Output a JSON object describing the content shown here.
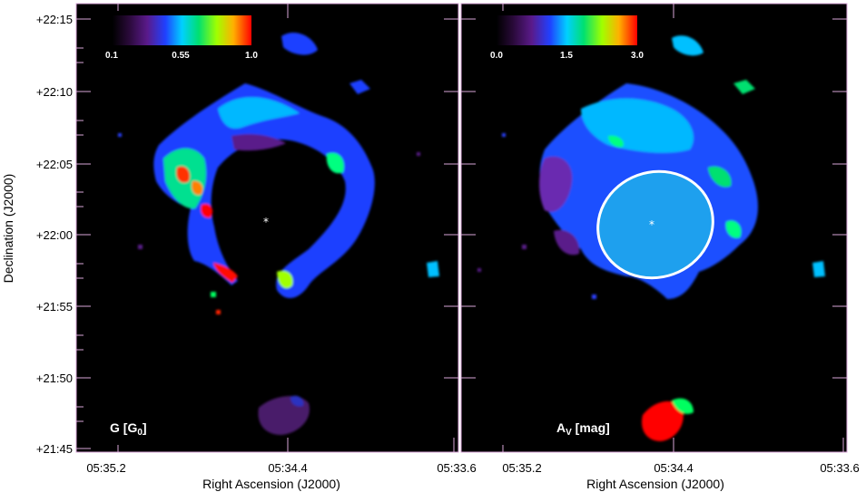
{
  "axes": {
    "y_title": "Declination (J2000)",
    "x_title": "Right Ascension (J2000)",
    "y_ticks": [
      "+22:15",
      "+22:10",
      "+22:05",
      "+22:00",
      "+21:55",
      "+21:50",
      "+21:45"
    ],
    "x_ticks": [
      "05:35.2",
      "05:34.4",
      "05:33.6"
    ]
  },
  "panels": [
    {
      "id": "g-map",
      "label_main": "G [G",
      "label_sub": "0",
      "label_close": "]",
      "colorbar_ticks": [
        "0.1",
        "0.55",
        "1.0"
      ]
    },
    {
      "id": "av-map",
      "label_main": "A",
      "label_sub": "V",
      "label_close": " [mag]",
      "colorbar_ticks": [
        "0.0",
        "1.5",
        "3.0"
      ]
    }
  ],
  "colors": {
    "background": "#000000",
    "frame": "#d9a6d9",
    "ellipse": "#ffffff",
    "ellipse_fill": "#1ea0ee"
  }
}
